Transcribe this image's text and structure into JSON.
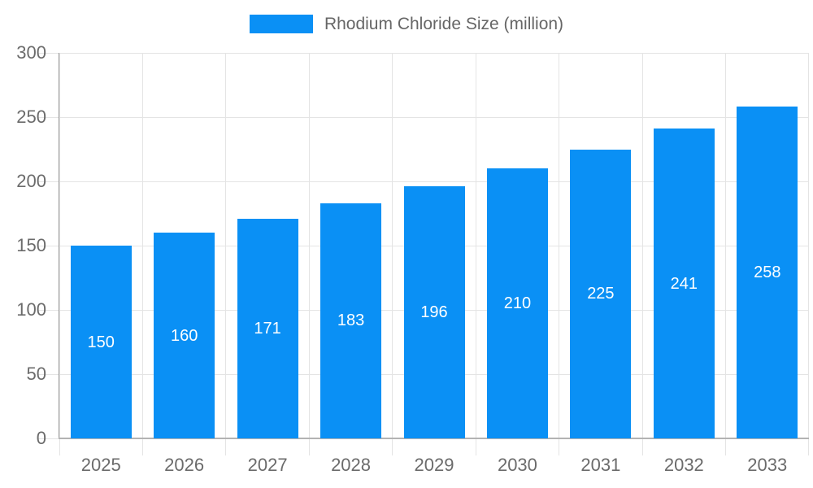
{
  "chart_data": {
    "type": "bar",
    "title": "",
    "legend": "Rhodium Chloride Size (million)",
    "legend_position": "top-center",
    "categories": [
      "2025",
      "2026",
      "2027",
      "2028",
      "2029",
      "2030",
      "2031",
      "2032",
      "2033"
    ],
    "values": [
      150,
      160,
      171,
      183,
      196,
      210,
      225,
      241,
      258
    ],
    "bar_value_labels": [
      "150",
      "160",
      "171",
      "183",
      "196",
      "210",
      "225",
      "241",
      "258"
    ],
    "xlabel": "",
    "ylabel": "",
    "ylim": [
      0,
      300
    ],
    "yticks": [
      0,
      50,
      100,
      150,
      200,
      250,
      300
    ],
    "grid": true,
    "colors": {
      "bar": "#0A90F5",
      "grid": "#e4e4e4",
      "tick": "#dcdcdc",
      "y_axis_line": "#9a9a9a",
      "x_axis_line": "#b3b3b3",
      "axis_text": "#6b6b6b",
      "legend_text": "#666666",
      "bar_label_text": "#ffffff",
      "background": "#ffffff"
    }
  }
}
